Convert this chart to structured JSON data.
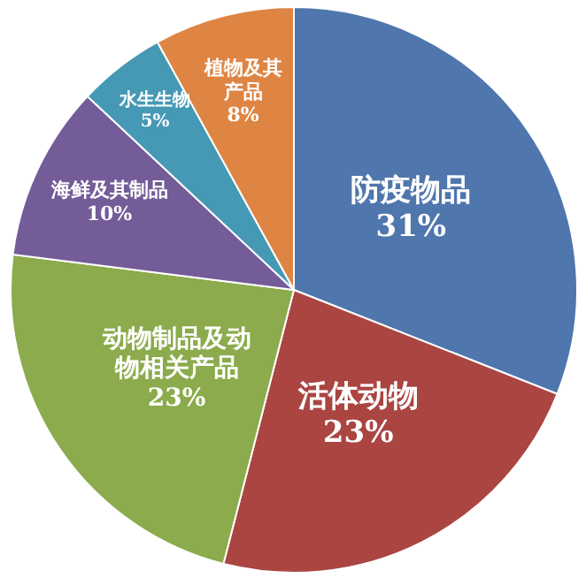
{
  "chart_data": {
    "type": "pie",
    "categories": [
      "防疫物品",
      "活体动物",
      "动物制品及动物相关产品",
      "海鲜及其制品",
      "水生生物",
      "植物及其产品"
    ],
    "values": [
      31,
      23,
      23,
      10,
      5,
      8
    ],
    "value_labels": [
      "31%",
      "23%",
      "23%",
      "10%",
      "5%",
      "8%"
    ],
    "colors": [
      "#4f76ad",
      "#aa4542",
      "#8bab4c",
      "#735c98",
      "#4699b4",
      "#de8544"
    ]
  }
}
